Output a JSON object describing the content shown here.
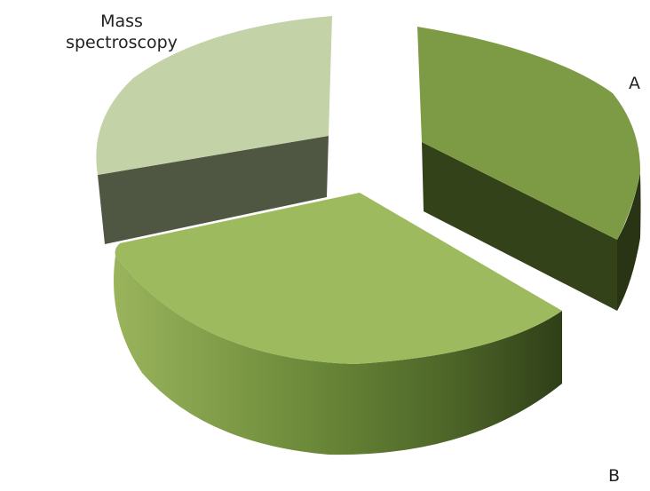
{
  "chart_data": {
    "type": "pie",
    "variant": "3d-exploded",
    "categories": [
      "A",
      "B",
      "Mass spectroscopy"
    ],
    "values": [
      30,
      45,
      25
    ],
    "colors": {
      "A": "#7c9a46",
      "B": "#9ebb5e",
      "Mass spectroscopy": "#c3d3a8"
    },
    "legend": "none"
  }
}
